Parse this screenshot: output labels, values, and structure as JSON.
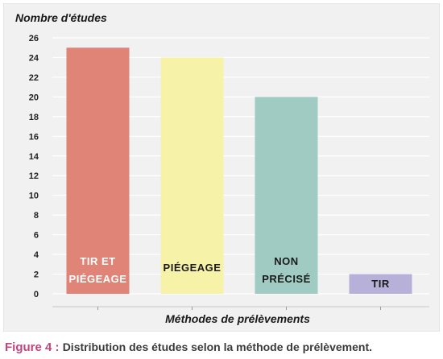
{
  "caption": {
    "label": "Figure 4 :",
    "text": "Distribution des études selon la méthode de prélèvement."
  },
  "chart_data": {
    "type": "bar",
    "ylabel": "Nombre d'études",
    "xlabel": "Méthodes de prélèvements",
    "ylim": [
      0,
      26
    ],
    "yticks": [
      0,
      2,
      4,
      6,
      8,
      10,
      12,
      14,
      16,
      18,
      20,
      22,
      24,
      26
    ],
    "grid": true,
    "legend": "none",
    "categories": [
      {
        "lines": [
          "TIR ET",
          "PIÉGEAGE"
        ],
        "value": 25,
        "color": "#e08478",
        "label_color": "#ffffff"
      },
      {
        "lines": [
          "PIÉGEAGE"
        ],
        "value": 24,
        "color": "#f6f2a8",
        "label_color": "#1a1a1a"
      },
      {
        "lines": [
          "NON",
          "PRÉCISÉ"
        ],
        "value": 20,
        "color": "#a0cbc2",
        "label_color": "#1a1a1a"
      },
      {
        "lines": [
          "TIR"
        ],
        "value": 2,
        "color": "#b7b1d9",
        "label_color": "#1a1a1a"
      }
    ],
    "colors": {
      "grid": "#ffffff",
      "axis_text": "#222222",
      "panel": "#f1f1f1"
    }
  }
}
